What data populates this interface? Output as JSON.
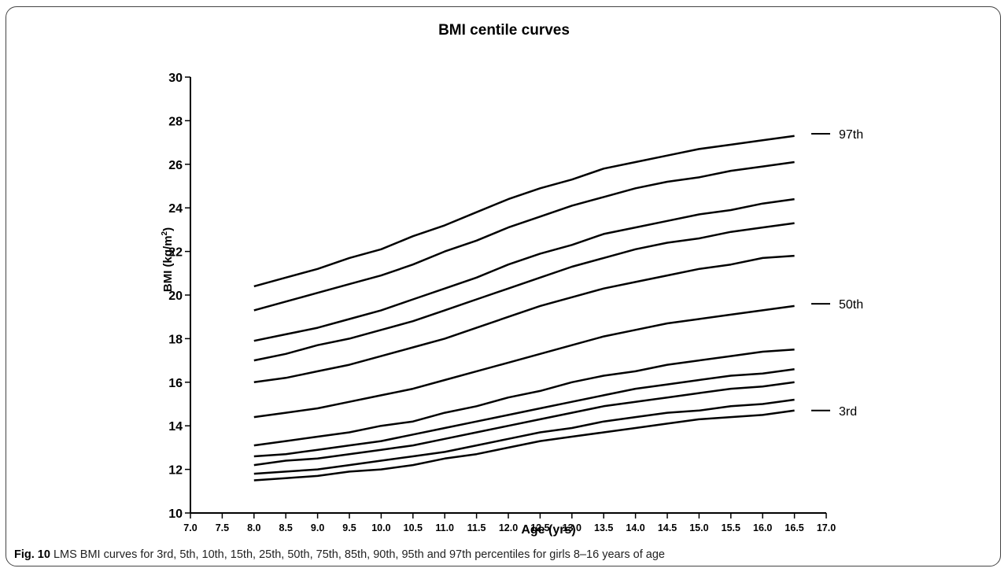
{
  "caption": {
    "fig_label": "Fig. 10",
    "text": " LMS BMI curves for 3rd, 5th, 10th, 15th, 25th, 50th, 75th, 85th, 90th, 95th and 97th percentiles for girls 8–16 years of age"
  },
  "chart_data": {
    "type": "line",
    "title": "BMI centile curves",
    "xlabel": "Age (yrs)",
    "ylabel_main": "BMI (kg/m",
    "ylabel_sup": "2",
    "ylabel_close": ")",
    "xlim": [
      7.0,
      17.0
    ],
    "ylim": [
      10,
      30
    ],
    "x_ticks": [
      7.0,
      7.5,
      8.0,
      8.5,
      9.0,
      9.5,
      10.0,
      10.5,
      11.0,
      11.5,
      12.0,
      12.5,
      13.0,
      13.5,
      14.0,
      14.5,
      15.0,
      15.5,
      16.0,
      16.5,
      17.0
    ],
    "y_ticks": [
      10,
      12,
      14,
      16,
      18,
      20,
      22,
      24,
      26,
      28,
      30
    ],
    "grid": false,
    "line_color": "#000000",
    "x": [
      8.0,
      8.5,
      9.0,
      9.5,
      10.0,
      10.5,
      11.0,
      11.5,
      12.0,
      12.5,
      13.0,
      13.5,
      14.0,
      14.5,
      15.0,
      15.5,
      16.0,
      16.5
    ],
    "series": [
      {
        "values": [
          11.5,
          11.6,
          11.7,
          11.9,
          12.0,
          12.2,
          12.5,
          12.7,
          13.0,
          13.3,
          13.5,
          13.7,
          13.9,
          14.1,
          14.3,
          14.4,
          14.5,
          14.7
        ]
      },
      {
        "values": [
          11.8,
          11.9,
          12.0,
          12.2,
          12.4,
          12.6,
          12.8,
          13.1,
          13.4,
          13.7,
          13.9,
          14.2,
          14.4,
          14.6,
          14.7,
          14.9,
          15.0,
          15.2
        ]
      },
      {
        "values": [
          12.2,
          12.4,
          12.5,
          12.7,
          12.9,
          13.1,
          13.4,
          13.7,
          14.0,
          14.3,
          14.6,
          14.9,
          15.1,
          15.3,
          15.5,
          15.7,
          15.8,
          16.0
        ]
      },
      {
        "values": [
          12.6,
          12.7,
          12.9,
          13.1,
          13.3,
          13.6,
          13.9,
          14.2,
          14.5,
          14.8,
          15.1,
          15.4,
          15.7,
          15.9,
          16.1,
          16.3,
          16.4,
          16.6
        ]
      },
      {
        "values": [
          13.1,
          13.3,
          13.5,
          13.7,
          14.0,
          14.2,
          14.6,
          14.9,
          15.3,
          15.6,
          16.0,
          16.3,
          16.5,
          16.8,
          17.0,
          17.2,
          17.4,
          17.5
        ]
      },
      {
        "values": [
          14.4,
          14.6,
          14.8,
          15.1,
          15.4,
          15.7,
          16.1,
          16.5,
          16.9,
          17.3,
          17.7,
          18.1,
          18.4,
          18.7,
          18.9,
          19.1,
          19.3,
          19.5
        ]
      },
      {
        "values": [
          16.0,
          16.2,
          16.5,
          16.8,
          17.2,
          17.6,
          18.0,
          18.5,
          19.0,
          19.5,
          19.9,
          20.3,
          20.6,
          20.9,
          21.2,
          21.4,
          21.7,
          21.8
        ]
      },
      {
        "values": [
          17.0,
          17.3,
          17.7,
          18.0,
          18.4,
          18.8,
          19.3,
          19.8,
          20.3,
          20.8,
          21.3,
          21.7,
          22.1,
          22.4,
          22.6,
          22.9,
          23.1,
          23.3
        ]
      },
      {
        "values": [
          17.9,
          18.2,
          18.5,
          18.9,
          19.3,
          19.8,
          20.3,
          20.8,
          21.4,
          21.9,
          22.3,
          22.8,
          23.1,
          23.4,
          23.7,
          23.9,
          24.2,
          24.4
        ]
      },
      {
        "values": [
          19.3,
          19.7,
          20.1,
          20.5,
          20.9,
          21.4,
          22.0,
          22.5,
          23.1,
          23.6,
          24.1,
          24.5,
          24.9,
          25.2,
          25.4,
          25.7,
          25.9,
          26.1
        ]
      },
      {
        "values": [
          20.4,
          20.8,
          21.2,
          21.7,
          22.1,
          22.7,
          23.2,
          23.8,
          24.4,
          24.9,
          25.3,
          25.8,
          26.1,
          26.4,
          26.7,
          26.9,
          27.1,
          27.3
        ]
      }
    ],
    "annotations": [
      {
        "text": "97th",
        "y": 27.4
      },
      {
        "text": "50th",
        "y": 19.6
      },
      {
        "text": "3rd",
        "y": 14.7
      }
    ]
  }
}
